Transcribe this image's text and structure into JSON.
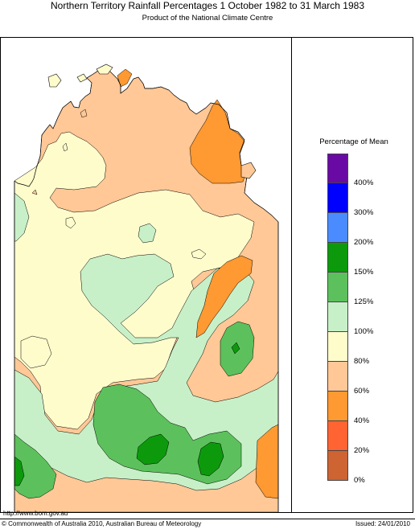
{
  "title": "Northern Territory Rainfall Percentages 1 October 1982 to 31 March 1983",
  "subtitle": "Product of the National Climate Centre",
  "legend": {
    "title": "Percentage of Mean",
    "classes": [
      {
        "label": "400%",
        "color": "#6a0aa4"
      },
      {
        "label": "300%",
        "color": "#0000ff"
      },
      {
        "label": "200%",
        "color": "#4a8cff"
      },
      {
        "label": "150%",
        "color": "#0c9a0c"
      },
      {
        "label": "125%",
        "color": "#5cc15c"
      },
      {
        "label": "100%",
        "color": "#c8f0c8"
      },
      {
        "label": "80%",
        "color": "#fffccc"
      },
      {
        "label": "60%",
        "color": "#ffc896"
      },
      {
        "label": "40%",
        "color": "#ff9932"
      },
      {
        "label": "20%",
        "color": "#ff6432"
      },
      {
        "label": "0%",
        "color": "#cd6432"
      }
    ]
  },
  "colors": {
    "ocean": "#ffffff",
    "below_60": "#ff9932",
    "60_80": "#ffc896",
    "80_100": "#fffccc",
    "100_125": "#c8f0c8",
    "125_150": "#5cc15c",
    "150_200": "#0c9a0c"
  },
  "footer": {
    "url": "http://www.bom.gov.au",
    "copyright": "© Commonwealth of Australia 2010, Australian Bureau of Meteorology",
    "issued": "Issued: 24/01/2010"
  }
}
